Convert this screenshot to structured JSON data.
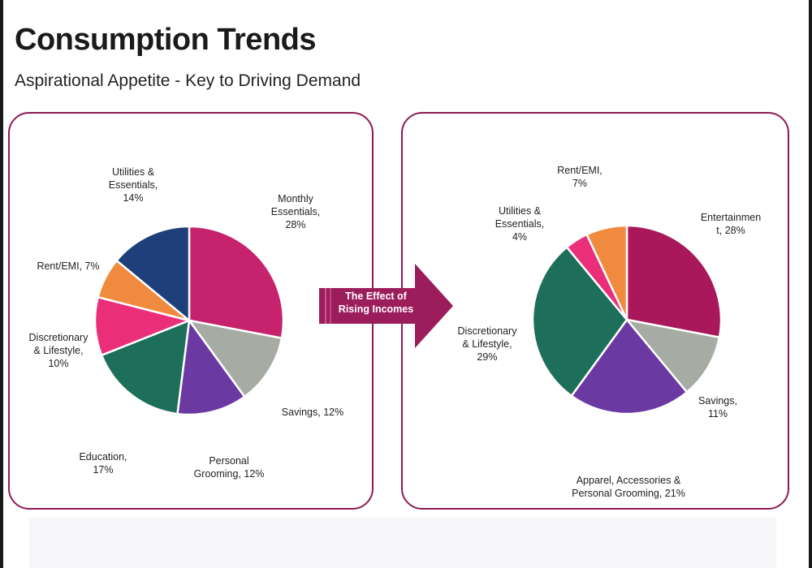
{
  "header": {
    "title": "Consumption Trends",
    "subtitle": "Aspirational Appetite - Key to Driving Demand"
  },
  "arrow": {
    "line1": "The Effect of",
    "line2": "Rising Incomes"
  },
  "colors": {
    "border": "#8e1a55",
    "arrow": "#9c1d5c",
    "magenta": "#c6226e",
    "maroon": "#a8185a",
    "grey": "#a6aca4",
    "purple": "#6a3aa2",
    "teal": "#1e6f5a",
    "pink": "#ea2e7a",
    "orange": "#f08a3e",
    "navy": "#1e3f7a"
  },
  "chart_data": [
    {
      "type": "pie",
      "title": "",
      "slices": [
        {
          "label_lines": [
            "Monthly",
            "Essentials,",
            "28%"
          ],
          "value": 28,
          "color": "#c6226e"
        },
        {
          "label_lines": [
            "Savings, 12%"
          ],
          "value": 12,
          "color": "#a6aca4"
        },
        {
          "label_lines": [
            "Personal",
            "Grooming, 12%"
          ],
          "value": 12,
          "color": "#6a3aa2"
        },
        {
          "label_lines": [
            "Education,",
            "17%"
          ],
          "value": 17,
          "color": "#1e6f5a"
        },
        {
          "label_lines": [
            "Discretionary",
            "& Lifestyle,",
            "10%"
          ],
          "value": 10,
          "color": "#ea2e7a"
        },
        {
          "label_lines": [
            "Rent/EMI, 7%"
          ],
          "value": 7,
          "color": "#f08a3e"
        },
        {
          "label_lines": [
            "Utilities &",
            "Essentials,",
            "14%"
          ],
          "value": 14,
          "color": "#1e3f7a"
        }
      ]
    },
    {
      "type": "pie",
      "title": "",
      "slices": [
        {
          "label_lines": [
            "Entertainmen",
            "t, 28%"
          ],
          "value": 28,
          "color": "#a8185a"
        },
        {
          "label_lines": [
            "Savings,",
            "11%"
          ],
          "value": 11,
          "color": "#a6aca4"
        },
        {
          "label_lines": [
            "Apparel, Accessories &",
            "Personal Grooming, 21%"
          ],
          "value": 21,
          "color": "#6a3aa2"
        },
        {
          "label_lines": [
            "Discretionary",
            "& Lifestyle,",
            "29%"
          ],
          "value": 29,
          "color": "#1e6f5a"
        },
        {
          "label_lines": [
            "Utilities &",
            "Essentials,",
            "4%"
          ],
          "value": 4,
          "color": "#ea2e7a"
        },
        {
          "label_lines": [
            "Rent/EMI,",
            "7%"
          ],
          "value": 7,
          "color": "#f08a3e"
        }
      ]
    }
  ]
}
